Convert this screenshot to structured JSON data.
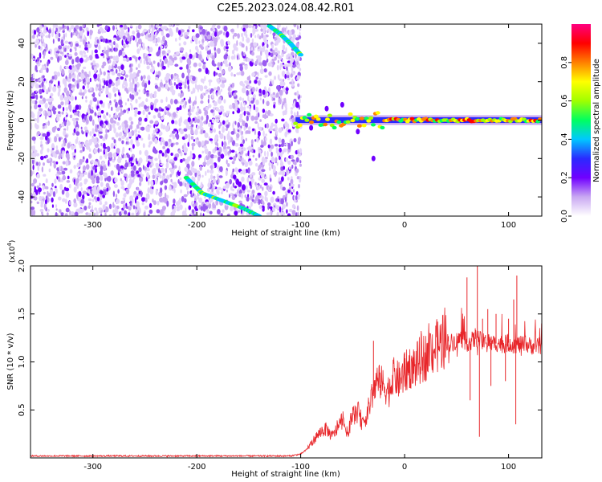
{
  "chart_data": [
    {
      "type": "heatmap",
      "title": "C2E5.2023.024.08.42.R01",
      "xlabel": "Height of straight line (km)",
      "ylabel": "Frequency (Hz)",
      "xlim": [
        -360,
        132
      ],
      "ylim": [
        -50,
        50
      ],
      "xticks": [
        -300,
        -200,
        -100,
        0,
        100
      ],
      "yticks": [
        40,
        20,
        0,
        -20,
        -40
      ],
      "colorbar": {
        "label": "Normalized spectral amplitude",
        "range": [
          0,
          1
        ],
        "ticks": [
          "0.0",
          "0.2",
          "0.4",
          "0.6",
          "0.8"
        ],
        "colors": [
          "#ffffff",
          "#c9a8f2",
          "#7000ff",
          "#2a2aff",
          "#00c8ff",
          "#00ff60",
          "#a0ff00",
          "#ffff00",
          "#ff8000",
          "#ff0000",
          "#ff0080"
        ]
      },
      "features": {
        "noise_region_x": [
          -360,
          -100
        ],
        "upper_streak": [
          [
            -130,
            49
          ],
          [
            -120,
            45
          ],
          [
            -110,
            40
          ],
          [
            -100,
            34
          ]
        ],
        "lower_streak": [
          [
            -210,
            -30
          ],
          [
            -195,
            -38
          ],
          [
            -175,
            -42
          ],
          [
            -155,
            -46
          ],
          [
            -140,
            -50
          ]
        ],
        "carrier_line": {
          "x": [
            -105,
            132
          ],
          "y": 0
        }
      }
    },
    {
      "type": "line",
      "xlabel": "Height of straight line (km)",
      "ylabel": "SNR (10 * v/v)",
      "yscale_label": "(x10",
      "yscale_exp": "4",
      "yscale_close": ")",
      "xlim": [
        -360,
        132
      ],
      "ylim": [
        0,
        2.0
      ],
      "xticks": [
        -300,
        -200,
        -100,
        0,
        100
      ],
      "yticks": [
        "0.5",
        "1.0",
        "1.5",
        "2.0"
      ],
      "series": [
        {
          "color": "#e8262a",
          "x": [
            -360,
            -300,
            -200,
            -110,
            -100,
            -95,
            -90,
            -85,
            -80,
            -75,
            -70,
            -65,
            -60,
            -55,
            -50,
            -45,
            -40,
            -35,
            -30,
            -25,
            -20,
            -15,
            -10,
            -5,
            0,
            5,
            10,
            15,
            20,
            25,
            30,
            35,
            40,
            45,
            50,
            55,
            60,
            65,
            70,
            75,
            80,
            85,
            90,
            95,
            100,
            105,
            110,
            120,
            132
          ],
          "y": [
            0.02,
            0.02,
            0.02,
            0.02,
            0.04,
            0.08,
            0.15,
            0.22,
            0.28,
            0.3,
            0.22,
            0.3,
            0.4,
            0.25,
            0.45,
            0.48,
            0.35,
            0.5,
            0.7,
            0.8,
            0.75,
            0.7,
            0.85,
            0.8,
            0.88,
            0.95,
            0.95,
            1.02,
            1.05,
            1.12,
            1.15,
            1.2,
            1.22,
            1.2,
            1.22,
            1.25,
            1.2,
            1.22,
            1.25,
            1.2,
            1.22,
            1.18,
            1.2,
            1.18,
            1.2,
            1.18,
            1.18,
            1.17,
            1.16
          ],
          "spikes": [
            [
              -30,
              1.22
            ],
            [
              0,
              1.1
            ],
            [
              60,
              1.88
            ],
            [
              63,
              0.6
            ],
            [
              68,
              1.35
            ],
            [
              70,
              2.0
            ],
            [
              72,
              0.22
            ],
            [
              75,
              1.45
            ],
            [
              80,
              1.55
            ],
            [
              83,
              0.75
            ],
            [
              88,
              1.5
            ],
            [
              97,
              0.8
            ],
            [
              100,
              1.45
            ],
            [
              105,
              1.65
            ],
            [
              107,
              0.35
            ],
            [
              108,
              1.9
            ]
          ]
        }
      ]
    }
  ]
}
